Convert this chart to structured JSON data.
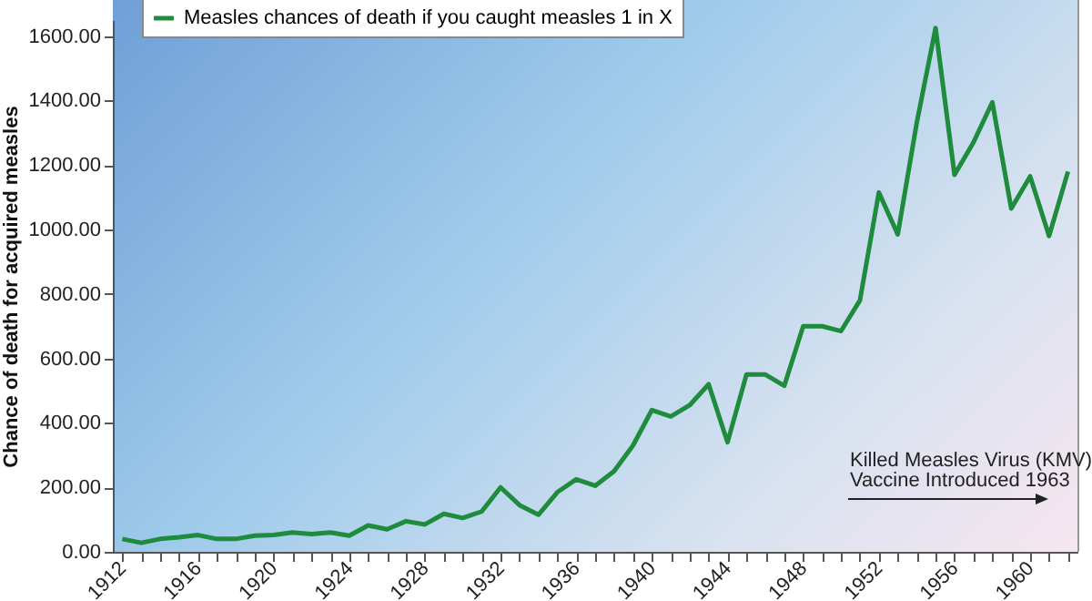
{
  "chart_data": {
    "type": "line",
    "ylabel": "Chance of death for acquired measles",
    "categories": [
      "1912",
      null,
      null,
      null,
      "1916",
      null,
      null,
      null,
      "1920",
      null,
      null,
      null,
      "1924",
      null,
      null,
      null,
      "1928",
      null,
      null,
      null,
      "1932",
      null,
      null,
      null,
      "1936",
      null,
      null,
      null,
      "1940",
      null,
      null,
      null,
      "1944",
      null,
      null,
      null,
      "1948",
      null,
      null,
      null,
      "1952",
      null,
      null,
      null,
      "1956",
      null,
      null,
      null,
      "1960",
      null,
      null
    ],
    "series": [
      {
        "name": "Measles chances of death if you caught measles 1 in X",
        "color": "#1e8c3c",
        "values": [
          40,
          28,
          40,
          45,
          52,
          40,
          40,
          50,
          52,
          60,
          55,
          60,
          50,
          82,
          70,
          95,
          85,
          118,
          105,
          125,
          200,
          145,
          115,
          185,
          225,
          205,
          250,
          330,
          440,
          420,
          455,
          520,
          340,
          550,
          550,
          515,
          700,
          700,
          685,
          780,
          1115,
          985,
          1330,
          1625,
          1170,
          1270,
          1395,
          1065,
          1165,
          980,
          1180
        ]
      }
    ],
    "ylim": [
      0,
      1650
    ],
    "yticks": [
      {
        "value": 0,
        "label": "0.00"
      },
      {
        "value": 200,
        "label": "200.00"
      },
      {
        "value": 400,
        "label": "400.00"
      },
      {
        "value": 600,
        "label": "600.00"
      },
      {
        "value": 800,
        "label": "800.00"
      },
      {
        "value": 1000,
        "label": "1000.00"
      },
      {
        "value": 1200,
        "label": "1200.00"
      },
      {
        "value": 1400,
        "label": "1400.00"
      },
      {
        "value": 1600,
        "label": "1600.00"
      }
    ],
    "grid": false,
    "legend": "top left",
    "marker": "none",
    "line_style": "solid",
    "annotations": [
      "Killed Measles Virus (KMV)",
      "Vaccine Introduced 1963"
    ]
  }
}
